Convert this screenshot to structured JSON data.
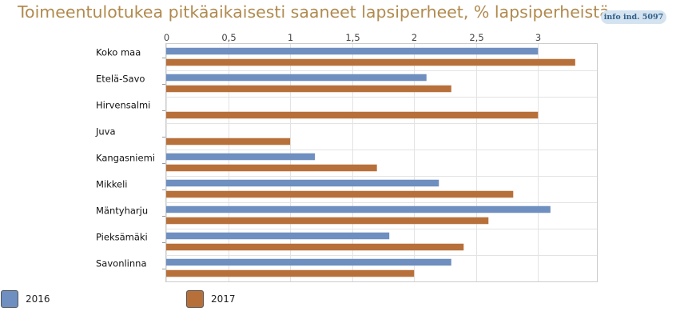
{
  "title": "Toimeentulotukea pitkäaikaisesti saaneet lapsiperheet, % lapsiperheistä",
  "info_badge": "info ind. 5097",
  "colors": {
    "2016": "#6e8fbf",
    "2017": "#b8703a"
  },
  "chart_data": {
    "type": "bar",
    "orientation": "horizontal",
    "categories": [
      "Koko maa",
      "Etelä-Savo",
      "Hirvensalmi",
      "Juva",
      "Kangasniemi",
      "Mikkeli",
      "Mäntyharju",
      "Pieksämäki",
      "Savonlinna"
    ],
    "series": [
      {
        "name": "2016",
        "values": [
          3.0,
          2.1,
          null,
          null,
          1.2,
          2.2,
          3.1,
          1.8,
          2.3
        ]
      },
      {
        "name": "2017",
        "values": [
          3.3,
          2.3,
          3.0,
          1.0,
          1.7,
          2.8,
          2.6,
          2.4,
          2.0
        ]
      }
    ],
    "xlim": [
      0,
      3.475
    ],
    "ticks": [
      "0",
      "0,5",
      "1",
      "1,5",
      "2",
      "2,5",
      "3"
    ],
    "tick_values": [
      0,
      0.5,
      1,
      1.5,
      2,
      2.5,
      3
    ],
    "axis_position": "top",
    "grid": true,
    "legend_position": "bottom-left"
  }
}
